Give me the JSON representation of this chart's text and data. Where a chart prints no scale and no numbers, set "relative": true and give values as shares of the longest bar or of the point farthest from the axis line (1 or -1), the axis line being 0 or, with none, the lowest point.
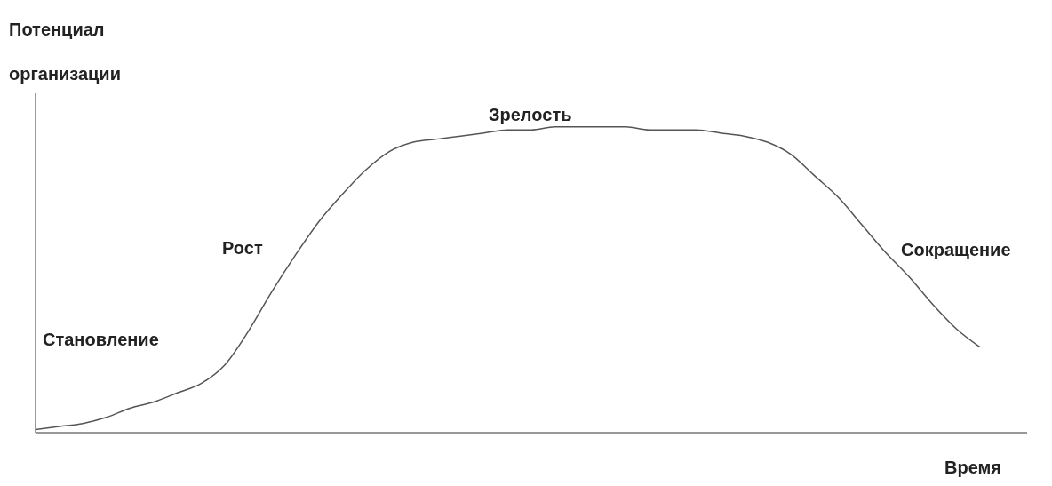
{
  "chart_data": {
    "type": "line",
    "relative": true,
    "ylabel": "Потенциал организации",
    "xlabel": "Время",
    "annotations": [
      "Становление",
      "Рост",
      "Зрелость",
      "Сокращение"
    ],
    "categories": [
      null,
      null,
      null,
      null,
      null,
      null,
      null,
      null,
      null,
      null,
      null,
      null,
      null,
      null,
      null,
      null,
      null,
      null,
      null,
      null,
      null,
      null,
      null,
      null,
      null,
      null,
      null,
      null,
      null,
      null,
      null,
      null,
      null,
      null,
      null,
      null,
      null,
      null,
      null,
      null,
      null,
      null,
      null
    ],
    "series": [
      {
        "color": "#555555",
        "values": [
          0.01,
          0.02,
          0.03,
          0.05,
          0.08,
          0.1,
          0.13,
          0.16,
          0.22,
          0.33,
          0.46,
          0.58,
          0.69,
          0.78,
          0.86,
          0.92,
          0.95,
          0.96,
          0.97,
          0.98,
          0.99,
          0.99,
          1.0,
          1.0,
          1.0,
          1.0,
          0.99,
          0.99,
          0.99,
          0.98,
          0.97,
          0.95,
          0.91,
          0.84,
          0.77,
          0.68,
          0.59,
          0.51,
          0.42,
          0.34,
          0.28,
          null,
          null
        ]
      }
    ],
    "grid": false,
    "legend": false,
    "marker": "none",
    "line_style": "solid"
  }
}
